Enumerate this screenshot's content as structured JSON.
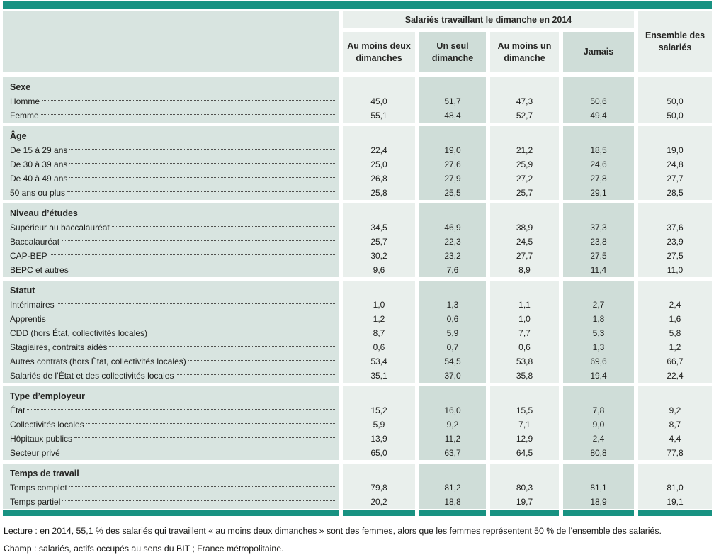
{
  "colors": {
    "teal_rule": "#189282",
    "label_column_bg": "#d8e4e0",
    "column_band_light": "#e9efec",
    "column_band_medium": "#cfddd8",
    "text": "#1d1d1b"
  },
  "header": {
    "group_title": "Salariés travaillant le dimanche en 2014",
    "col_headers": [
      "Au moins deux dimanches",
      "Un seul dimanche",
      "Au moins un dimanche",
      "Jamais"
    ],
    "ensemble_header": "Ensemble des salariés"
  },
  "chart_data": {
    "type": "table",
    "title": "Salariés travaillant le dimanche en 2014",
    "columns": [
      "Au moins deux dimanches",
      "Un seul dimanche",
      "Au moins un dimanche",
      "Jamais",
      "Ensemble des salariés"
    ],
    "decimal_separator": ",",
    "sections": [
      {
        "name": "Sexe",
        "rows": [
          {
            "label": "Homme",
            "values": [
              45.0,
              51.7,
              47.3,
              50.6,
              50.0
            ]
          },
          {
            "label": "Femme",
            "values": [
              55.1,
              48.4,
              52.7,
              49.4,
              50.0
            ]
          }
        ]
      },
      {
        "name": "Âge",
        "rows": [
          {
            "label": "De 15 à 29 ans",
            "values": [
              22.4,
              19.0,
              21.2,
              18.5,
              19.0
            ]
          },
          {
            "label": "De 30 à 39 ans",
            "values": [
              25.0,
              27.6,
              25.9,
              24.6,
              24.8
            ]
          },
          {
            "label": "De 40 à 49 ans",
            "values": [
              26.8,
              27.9,
              27.2,
              27.8,
              27.7
            ]
          },
          {
            "label": "50 ans ou plus",
            "values": [
              25.8,
              25.5,
              25.7,
              29.1,
              28.5
            ]
          }
        ]
      },
      {
        "name": "Niveau d’études",
        "rows": [
          {
            "label": "Supérieur au baccalauréat",
            "values": [
              34.5,
              46.9,
              38.9,
              37.3,
              37.6
            ]
          },
          {
            "label": "Baccalauréat",
            "values": [
              25.7,
              22.3,
              24.5,
              23.8,
              23.9
            ]
          },
          {
            "label": "CAP-BEP",
            "values": [
              30.2,
              23.2,
              27.7,
              27.5,
              27.5
            ]
          },
          {
            "label": "BEPC et autres",
            "values": [
              9.6,
              7.6,
              8.9,
              11.4,
              11.0
            ]
          }
        ]
      },
      {
        "name": "Statut",
        "rows": [
          {
            "label": "Intérimaires",
            "values": [
              1.0,
              1.3,
              1.1,
              2.7,
              2.4
            ]
          },
          {
            "label": "Apprentis",
            "values": [
              1.2,
              0.6,
              1.0,
              1.8,
              1.6
            ]
          },
          {
            "label": "CDD (hors État, collectivités locales)",
            "values": [
              8.7,
              5.9,
              7.7,
              5.3,
              5.8
            ]
          },
          {
            "label": "Stagiaires, contraits aidés",
            "values": [
              0.6,
              0.7,
              0.6,
              1.3,
              1.2
            ]
          },
          {
            "label": "Autres contrats (hors État, collectivités locales)",
            "values": [
              53.4,
              54.5,
              53.8,
              69.6,
              66.7
            ]
          },
          {
            "label": "Salariés de l’État et des collectivités locales",
            "values": [
              35.1,
              37.0,
              35.8,
              19.4,
              22.4
            ]
          }
        ]
      },
      {
        "name": "Type d’employeur",
        "rows": [
          {
            "label": "État",
            "values": [
              15.2,
              16.0,
              15.5,
              7.8,
              9.2
            ]
          },
          {
            "label": "Collectivités locales",
            "values": [
              5.9,
              9.2,
              7.1,
              9.0,
              8.7
            ]
          },
          {
            "label": "Hôpitaux publics",
            "values": [
              13.9,
              11.2,
              12.9,
              2.4,
              4.4
            ]
          },
          {
            "label": "Secteur privé",
            "values": [
              65.0,
              63.7,
              64.5,
              80.8,
              77.8
            ]
          }
        ]
      },
      {
        "name": "Temps de travail",
        "rows": [
          {
            "label": "Temps complet",
            "values": [
              79.8,
              81.2,
              80.3,
              81.1,
              81.0
            ]
          },
          {
            "label": "Temps partiel",
            "values": [
              20.2,
              18.8,
              19.7,
              18.9,
              19.1
            ]
          }
        ]
      }
    ]
  },
  "footer": {
    "lecture": "Lecture : en 2014, 55,1 % des salariés qui travaillent « au moins deux dimanches » sont des femmes, alors que les femmes représentent 50 % de l’ensemble des salariés.",
    "champ": "Champ : salariés, actifs occupés au sens du BIT ; France métropolitaine."
  }
}
